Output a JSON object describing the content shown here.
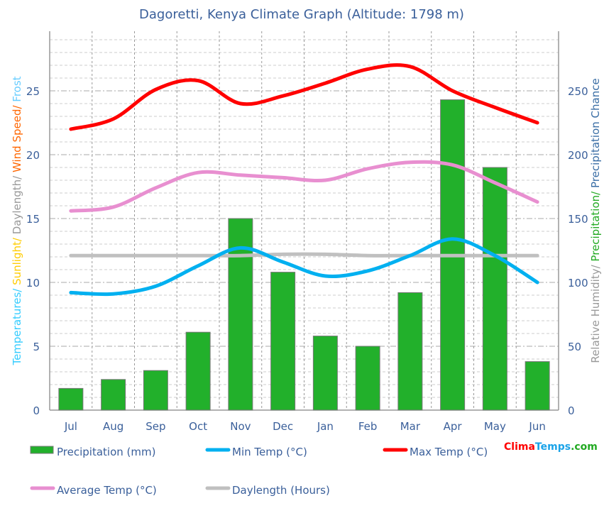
{
  "chart_data": {
    "type": "bar+line",
    "title": "Dagoretti, Kenya Climate Graph (Altitude: 1798 m)",
    "categories": [
      "Jul",
      "Aug",
      "Sep",
      "Oct",
      "Nov",
      "Dec",
      "Jan",
      "Feb",
      "Mar",
      "Apr",
      "May",
      "Jun"
    ],
    "left_axis": {
      "label_parts": [
        {
          "text": "Temperatures/ ",
          "color": "#33ccff"
        },
        {
          "text": "Sunlight/ ",
          "color": "#ffcc00"
        },
        {
          "text": "Daylength/ ",
          "color": "#999999"
        },
        {
          "text": "Wind Speed/ ",
          "color": "#ff6600"
        },
        {
          "text": "Frost",
          "color": "#66ccff"
        }
      ],
      "ylim": [
        0,
        30
      ],
      "ticks": [
        0,
        5,
        10,
        15,
        20,
        25
      ]
    },
    "right_axis": {
      "label_parts": [
        {
          "text": "Relative Humidity/ ",
          "color": "#999999"
        },
        {
          "text": "Precipitation/ ",
          "color": "#22aa22"
        },
        {
          "text": "Precipitation Chance",
          "color": "#3a6ea5"
        }
      ],
      "ylim": [
        0,
        300
      ],
      "ticks": [
        0,
        50,
        100,
        150,
        200,
        250
      ]
    },
    "grid": true,
    "series": [
      {
        "name": "Precipitation (mm)",
        "type": "bar",
        "axis": "right",
        "color": "#22b02b",
        "values": [
          17,
          24,
          31,
          61,
          150,
          108,
          58,
          50,
          92,
          243,
          190,
          38
        ]
      },
      {
        "name": "Min Temp (°C)",
        "type": "line",
        "axis": "left",
        "color": "#00b0f0",
        "values": [
          9.2,
          9.1,
          9.7,
          11.3,
          12.7,
          11.6,
          10.5,
          10.9,
          12.1,
          13.4,
          12.1,
          10.0
        ]
      },
      {
        "name": "Max Temp (°C)",
        "type": "line",
        "axis": "left",
        "color": "#ff0000",
        "values": [
          22.0,
          22.8,
          25.1,
          25.8,
          24.0,
          24.6,
          25.6,
          26.7,
          26.9,
          25.0,
          23.7,
          22.5
        ]
      },
      {
        "name": "Average Temp (°C)",
        "type": "line",
        "axis": "left",
        "color": "#e88fd0",
        "values": [
          15.6,
          15.9,
          17.4,
          18.6,
          18.4,
          18.2,
          18.0,
          18.9,
          19.4,
          19.2,
          17.8,
          16.3
        ]
      },
      {
        "name": "Daylength (Hours)",
        "type": "line",
        "axis": "left",
        "color": "#c0c0c0",
        "values": [
          12.1,
          12.1,
          12.1,
          12.1,
          12.1,
          12.2,
          12.2,
          12.1,
          12.1,
          12.1,
          12.1,
          12.1
        ]
      }
    ],
    "legend_position": "bottom"
  },
  "brand": {
    "parts": [
      {
        "text": "Clima",
        "color": "#ff0000"
      },
      {
        "text": "Temps",
        "color": "#1aa3e8"
      },
      {
        "text": ".com",
        "color": "#22aa22"
      }
    ]
  }
}
